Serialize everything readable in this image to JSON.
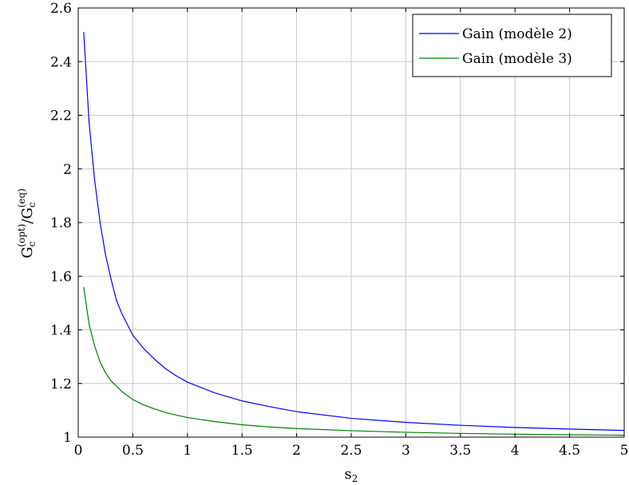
{
  "chart_data": {
    "type": "line",
    "xlabel": "s",
    "xlabel_sub": "2",
    "ylabel": {
      "base1": "G",
      "sub1": "c",
      "sup1": "(opt)",
      "slash": "/",
      "base2": "G",
      "sub2": "c",
      "sup2": "(eq)"
    },
    "xlim": [
      0,
      5
    ],
    "ylim": [
      1,
      2.6
    ],
    "xticks": [
      0,
      0.5,
      1,
      1.5,
      2,
      2.5,
      3,
      3.5,
      4,
      4.5,
      5
    ],
    "xtick_labels": [
      "0",
      "0.5",
      "1",
      "1.5",
      "2",
      "2.5",
      "3",
      "3.5",
      "4",
      "4.5",
      "5"
    ],
    "yticks": [
      1,
      1.2,
      1.4,
      1.6,
      1.8,
      2,
      2.2,
      2.4,
      2.6
    ],
    "ytick_labels": [
      "1",
      "1.2",
      "1.4",
      "1.6",
      "1.8",
      "2",
      "2.2",
      "2.4",
      "2.6"
    ],
    "grid": true,
    "legend_position": "top-right",
    "series": [
      {
        "name": "Gain (modèle 2)",
        "color": "#0000ff",
        "x": [
          0.05,
          0.1,
          0.15,
          0.2,
          0.25,
          0.3,
          0.35,
          0.4,
          0.45,
          0.5,
          0.6,
          0.7,
          0.8,
          0.9,
          1.0,
          1.25,
          1.5,
          1.75,
          2.0,
          2.5,
          3.0,
          3.5,
          4.0,
          4.5,
          5.0
        ],
        "y": [
          2.51,
          2.17,
          1.96,
          1.8,
          1.68,
          1.59,
          1.51,
          1.46,
          1.42,
          1.38,
          1.33,
          1.29,
          1.255,
          1.228,
          1.205,
          1.165,
          1.135,
          1.114,
          1.095,
          1.07,
          1.055,
          1.044,
          1.036,
          1.03,
          1.025
        ]
      },
      {
        "name": "Gain (modèle 3)",
        "color": "#007f00",
        "x": [
          0.05,
          0.1,
          0.15,
          0.2,
          0.25,
          0.3,
          0.35,
          0.4,
          0.45,
          0.5,
          0.6,
          0.7,
          0.8,
          0.9,
          1.0,
          1.25,
          1.5,
          1.75,
          2.0,
          2.5,
          3.0,
          3.5,
          4.0,
          4.5,
          5.0
        ],
        "y": [
          1.56,
          1.42,
          1.34,
          1.28,
          1.24,
          1.21,
          1.19,
          1.17,
          1.155,
          1.14,
          1.12,
          1.105,
          1.092,
          1.082,
          1.073,
          1.058,
          1.046,
          1.038,
          1.032,
          1.024,
          1.018,
          1.014,
          1.011,
          1.009,
          1.007
        ]
      }
    ]
  }
}
